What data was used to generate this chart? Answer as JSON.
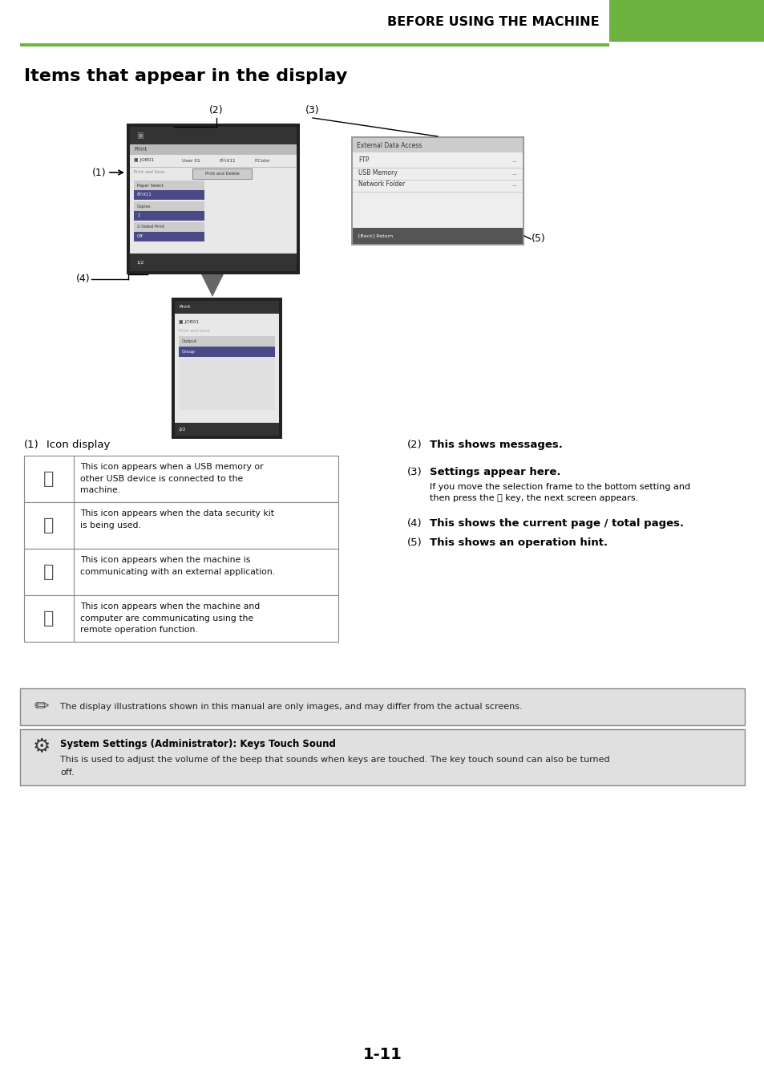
{
  "page_title": "BEFORE USING THE MACHINE",
  "section_title": "Items that appear in the display",
  "green_color": "#6db33f",
  "note_bg": "#e0e0e0",
  "page_number": "1-11",
  "icon_rows": [
    {
      "desc": "This icon appears when a USB memory or\nother USB device is connected to the\nmachine."
    },
    {
      "desc": "This icon appears when the data security kit\nis being used."
    },
    {
      "desc": "This icon appears when the machine is\ncommunicating with an external application."
    },
    {
      "desc": "This icon appears when the machine and\ncomputer are communicating using the\nremote operation function."
    }
  ],
  "note1_text": "The display illustrations shown in this manual are only images, and may differ from the actual screens.",
  "note2_title": "System Settings (Administrator): Keys Touch Sound",
  "note2_body": "This is used to adjust the volume of the beep that sounds when keys are touched. The key touch sound can also be turned\noff.",
  "sub3_line1": "If you move the selection frame to the bottom setting and",
  "sub3_line2": "then press the Ⓗ key, the next screen appears."
}
